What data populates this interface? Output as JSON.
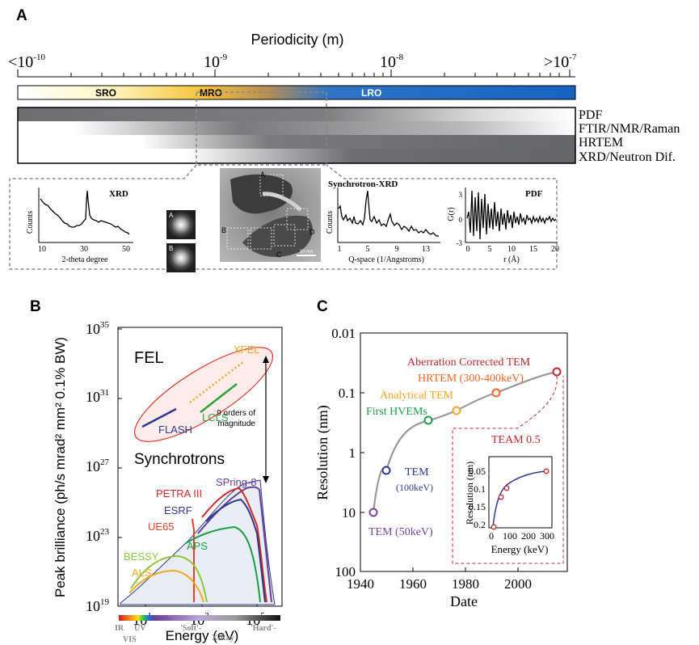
{
  "panel_a": {
    "label": "A",
    "axis_title": "Periodicity (m)",
    "ticks": [
      {
        "prefix": "<10",
        "exp": "-10"
      },
      {
        "prefix": "10",
        "exp": "-9"
      },
      {
        "prefix": "10",
        "exp": "-8"
      },
      {
        "prefix": ">10",
        "exp": "-7"
      }
    ],
    "order_bar": {
      "sro": "SRO",
      "mro": "MRO",
      "lro": "LRO"
    },
    "techniques": [
      "PDF",
      "FTIR/NMR/Raman",
      "HRTEM",
      "XRD/Neutron Dif."
    ],
    "insets": {
      "xrd": {
        "title": "XRD",
        "ylabel": "Counts",
        "xlabel": "2-theta degree",
        "xticks": [
          "10",
          "30",
          "50"
        ]
      },
      "fft_labels": [
        "A",
        "B"
      ],
      "tem_labels": [
        "A",
        "B",
        "C",
        "D"
      ],
      "scale_bar": "10 nm",
      "sync": {
        "title": "Synchrotron-XRD",
        "ylabel": "Counts",
        "xlabel": "Q-space (1/Angstroms)",
        "xticks": [
          "1",
          "5",
          "9",
          "13"
        ]
      },
      "pdf": {
        "title": "PDF",
        "ylabel": "G(r)",
        "xlabel": "r (Å)",
        "xticks": [
          "0",
          "5",
          "10",
          "15",
          "20"
        ],
        "yticks": [
          "3",
          "0",
          "-3"
        ]
      }
    }
  },
  "panel_b": {
    "label": "B",
    "ylabel": "Peak brilliance (ph/s mrad² mm² 0.1% BW)",
    "xlabel": "Energy (eV)",
    "yticks": [
      {
        "base": "10",
        "exp": "35"
      },
      {
        "base": "10",
        "exp": "31"
      },
      {
        "base": "10",
        "exp": "27"
      },
      {
        "base": "10",
        "exp": "23"
      },
      {
        "base": "10",
        "exp": "19"
      }
    ],
    "xticks": [
      {
        "base": "10",
        "exp": "1"
      },
      {
        "base": "10",
        "exp": "3"
      },
      {
        "base": "10",
        "exp": "5"
      }
    ],
    "fel_label": "FEL",
    "synchrotrons_label": "Synchrotrons",
    "arrow_label_1": "9 orders of",
    "arrow_label_2": "magnitude",
    "sources": {
      "xfel": "XFEL",
      "lcls": "LCLS",
      "flash": "FLASH",
      "spring8": "SPring-8",
      "petra": "PETRA III",
      "esrf": "ESRF",
      "ue65": "UE65",
      "aps": "APS",
      "bessy": "BESSY",
      "als": "ALS"
    },
    "colors": {
      "xfel": "#f5a623",
      "lcls": "#2aa33c",
      "flash": "#2b3990",
      "spring8": "#6a3d9a",
      "petra": "#d62728",
      "esrf": "#2b3990",
      "ue65": "#e8402a",
      "aps": "#1e9e4a",
      "bessy": "#8cc63f",
      "als": "#f5a623"
    },
    "spectrum_labels": {
      "ir": "IR",
      "uv": "UV",
      "vis": "VIS",
      "soft": "'Soft'-",
      "xray": "X-Ray",
      "hard": "'Hard'-"
    }
  },
  "panel_c": {
    "label": "C",
    "ylabel": "Resolution (nm)",
    "xlabel": "Date",
    "yticks": [
      "0.01",
      "0.1",
      "1",
      "10",
      "100"
    ],
    "xticks": [
      "1940",
      "1960",
      "1980",
      "2000"
    ],
    "points": [
      {
        "year": 1945,
        "resolution": 10,
        "label": "TEM (50keV)",
        "color": "#7b3fa0"
      },
      {
        "year": 1950,
        "resolution": 2,
        "label": "TEM",
        "label2": "(100keV)",
        "color": "#2b3990"
      },
      {
        "year": 1966,
        "resolution": 0.3,
        "label": "First HVEMs",
        "color": "#1a9e4a"
      },
      {
        "year": 1975,
        "resolution": 0.2,
        "label": "Analytical TEM",
        "color": "#f5a623"
      },
      {
        "year": 1990,
        "resolution": 0.1,
        "label": "HRTEM (300-400keV)",
        "color": "#f26522"
      },
      {
        "year": 2012,
        "resolution": 0.045,
        "label": "Aberration Corrected TEM",
        "color": "#c1272d"
      }
    ],
    "inset": {
      "title": "TEAM 0.5",
      "ylabel": "Resolution (nm)",
      "xlabel": "Energy (keV)",
      "yticks": [
        "0.05",
        "0.1",
        "0.15",
        "0.2"
      ],
      "xticks": [
        "0",
        "100",
        "200",
        "300"
      ],
      "points": [
        {
          "energy": 20,
          "resolution": 0.198
        },
        {
          "energy": 60,
          "resolution": 0.135
        },
        {
          "energy": 90,
          "resolution": 0.112
        },
        {
          "energy": 300,
          "resolution": 0.055
        }
      ]
    }
  }
}
